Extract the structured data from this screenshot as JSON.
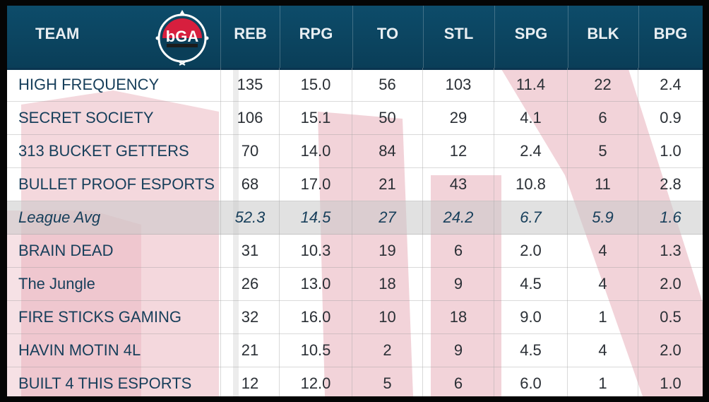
{
  "columns": [
    "TEAM",
    "REB",
    "RPG",
    "TO",
    "STL",
    "SPG",
    "BLK",
    "BPG"
  ],
  "logo": {
    "text": "bGA",
    "icon": "bga-logo-icon",
    "colors": {
      "red": "#d71f3e",
      "ring": "#0a3e58",
      "white": "#ffffff"
    }
  },
  "colors": {
    "header": "#0a3e58",
    "team_text": "#163e5a",
    "watermark": "#e6a8b4",
    "avg_row": "#cfcfcf"
  },
  "rows": [
    [
      "HIGH FREQUENCY",
      "135",
      "15.0",
      "56",
      "103",
      "11.4",
      "22",
      "2.4"
    ],
    [
      "SECRET SOCIETY",
      "106",
      "15.1",
      "50",
      "29",
      "4.1",
      "6",
      "0.9"
    ],
    [
      "313 BUCKET GETTERS",
      "70",
      "14.0",
      "84",
      "12",
      "2.4",
      "5",
      "1.0"
    ],
    [
      "BULLET PROOF ESPORTS",
      "68",
      "17.0",
      "21",
      "43",
      "10.8",
      "11",
      "2.8"
    ],
    [
      "League Avg",
      "52.3",
      "14.5",
      "27",
      "24.2",
      "6.7",
      "5.9",
      "1.6"
    ],
    [
      "BRAIN DEAD",
      "31",
      "10.3",
      "19",
      "6",
      "2.0",
      "4",
      "1.3"
    ],
    [
      "The Jungle",
      "26",
      "13.0",
      "18",
      "9",
      "4.5",
      "4",
      "2.0"
    ],
    [
      "FIRE STICKS GAMING",
      "32",
      "16.0",
      "10",
      "18",
      "9.0",
      "1",
      "0.5"
    ],
    [
      "HAVIN MOTIN 4L",
      "21",
      "10.5",
      "2",
      "9",
      "4.5",
      "4",
      "2.0"
    ],
    [
      "BUILT 4 THIS ESPORTS",
      "12",
      "12.0",
      "5",
      "6",
      "6.0",
      "1",
      "1.0"
    ]
  ]
}
